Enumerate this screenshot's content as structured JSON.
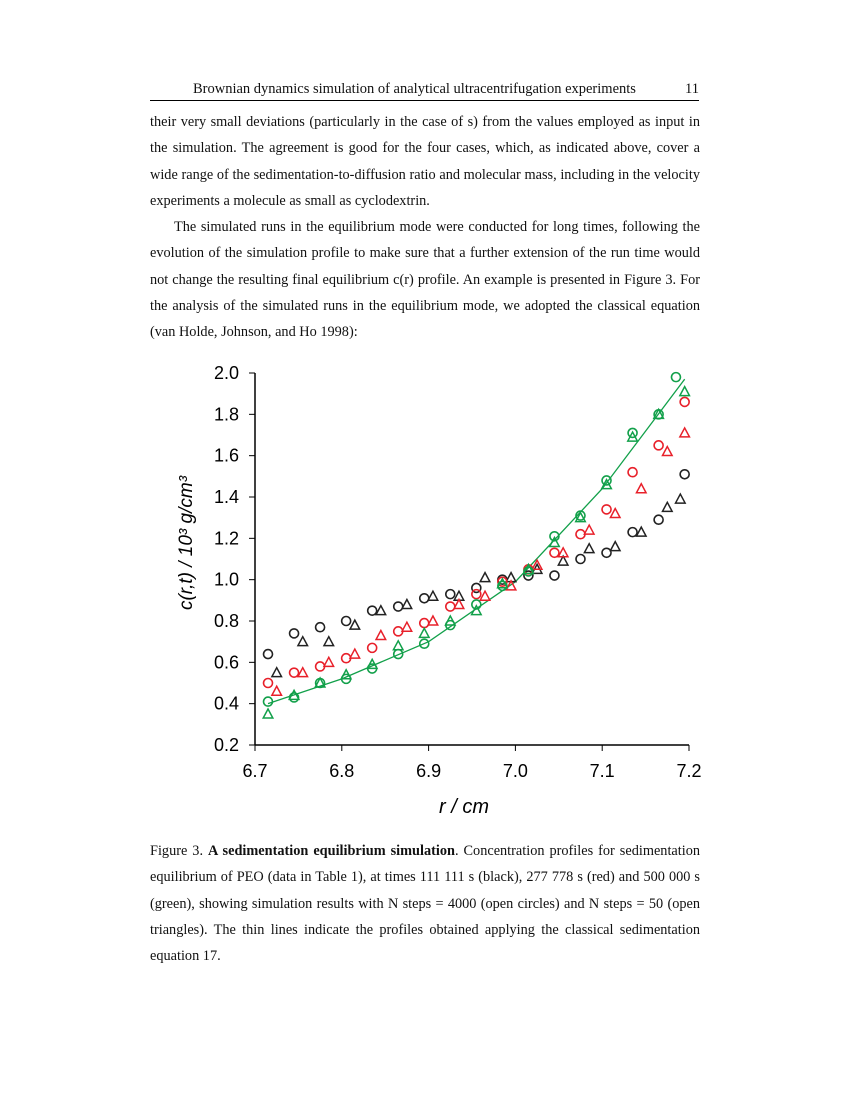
{
  "header": {
    "title": "Brownian dynamics simulation of analytical ultracentrifugation experiments",
    "page": "11"
  },
  "para1": "their very small deviations (particularly in the case of s) from the values employed as input in the simulation. The agreement is good for the four cases, which, as indicated above, cover a wide range of the sedimentation-to-diffusion ratio and molecular mass, including in the velocity experiments a molecule as small as cyclodextrin.",
  "para2": "The simulated runs in the equilibrium mode were conducted for long times, following the evolution of the simulation profile to make sure that a further extension of the run time would not change the resulting final equilibrium c(r) profile. An example is presented in Figure 3. For the analysis of the simulated runs in the equilibrium mode, we adopted the classical equation (van Holde, Johnson, and Ho 1998):",
  "caption": {
    "label": "Figure 3.",
    "title": "A sedimentation equilibrium simulation",
    "text": ". Concentration profiles for sedimentation equilibrium of PEO (data in Table 1), at times 111 111 s (black), 277 778 s (red) and 500 000 s (green), showing simulation results with N steps = 4000 (open circles) and N steps = 50 (open triangles). The thin lines indicate the profiles obtained applying the classical sedimentation equation 17."
  },
  "chart_data": {
    "type": "scatter",
    "xlabel": "r / cm",
    "ylabel": "c(r,t)  / 10^3 g/cm^3",
    "xlim": [
      6.7,
      7.2
    ],
    "ylim": [
      0.2,
      2.0
    ],
    "xticks": [
      "6.7",
      "6.8",
      "6.9",
      "7.0",
      "7.1",
      "7.2"
    ],
    "yticks": [
      "0.2",
      "0.4",
      "0.6",
      "0.8",
      "1.0",
      "1.2",
      "1.4",
      "1.6",
      "1.8",
      "2.0"
    ],
    "series": [
      {
        "name": "111111 s, Nsteps=4000",
        "color": "#222222",
        "marker": "circle",
        "x": [
          6.715,
          6.745,
          6.775,
          6.805,
          6.835,
          6.865,
          6.895,
          6.925,
          6.955,
          6.985,
          7.015,
          7.045,
          7.075,
          7.105,
          7.135,
          7.165,
          7.195
        ],
        "y": [
          0.64,
          0.74,
          0.77,
          0.8,
          0.85,
          0.87,
          0.91,
          0.93,
          0.96,
          1.0,
          1.02,
          1.02,
          1.1,
          1.13,
          1.23,
          1.29,
          1.51
        ]
      },
      {
        "name": "111111 s, Nsteps=50",
        "color": "#222222",
        "marker": "triangle",
        "x": [
          6.725,
          6.755,
          6.785,
          6.815,
          6.845,
          6.875,
          6.905,
          6.935,
          6.965,
          6.995,
          7.025,
          7.055,
          7.085,
          7.115,
          7.145,
          7.175,
          7.19
        ],
        "y": [
          0.55,
          0.7,
          0.7,
          0.78,
          0.85,
          0.88,
          0.92,
          0.92,
          1.01,
          1.01,
          1.05,
          1.09,
          1.15,
          1.16,
          1.23,
          1.35,
          1.39
        ]
      },
      {
        "name": "277778 s, Nsteps=4000",
        "color": "#e8202a",
        "marker": "circle",
        "x": [
          6.715,
          6.745,
          6.775,
          6.805,
          6.835,
          6.865,
          6.895,
          6.925,
          6.955,
          6.985,
          7.015,
          7.045,
          7.075,
          7.105,
          7.135,
          7.165,
          7.195
        ],
        "y": [
          0.5,
          0.55,
          0.58,
          0.62,
          0.67,
          0.75,
          0.79,
          0.87,
          0.93,
          0.99,
          1.05,
          1.13,
          1.22,
          1.34,
          1.52,
          1.65,
          1.86
        ]
      },
      {
        "name": "277778 s, Nsteps=50",
        "color": "#e8202a",
        "marker": "triangle",
        "x": [
          6.725,
          6.755,
          6.785,
          6.815,
          6.845,
          6.875,
          6.905,
          6.935,
          6.965,
          6.995,
          7.025,
          7.055,
          7.085,
          7.115,
          7.145,
          7.175,
          7.195
        ],
        "y": [
          0.46,
          0.55,
          0.6,
          0.64,
          0.73,
          0.77,
          0.8,
          0.88,
          0.92,
          0.97,
          1.07,
          1.13,
          1.24,
          1.32,
          1.44,
          1.62,
          1.71
        ]
      },
      {
        "name": "500000 s, Nsteps=4000",
        "color": "#12a04a",
        "marker": "circle",
        "x": [
          6.715,
          6.745,
          6.775,
          6.805,
          6.835,
          6.865,
          6.895,
          6.925,
          6.955,
          6.985,
          7.015,
          7.045,
          7.075,
          7.105,
          7.135,
          7.165,
          7.185
        ],
        "y": [
          0.41,
          0.43,
          0.5,
          0.52,
          0.57,
          0.64,
          0.69,
          0.78,
          0.88,
          0.97,
          1.04,
          1.21,
          1.31,
          1.48,
          1.71,
          1.8,
          1.98
        ]
      },
      {
        "name": "500000 s, Nsteps=50",
        "color": "#12a04a",
        "marker": "triangle",
        "x": [
          6.715,
          6.745,
          6.775,
          6.805,
          6.835,
          6.865,
          6.895,
          6.925,
          6.955,
          6.985,
          7.015,
          7.045,
          7.075,
          7.105,
          7.135,
          7.165,
          7.195
        ],
        "y": [
          0.35,
          0.44,
          0.5,
          0.54,
          0.59,
          0.68,
          0.74,
          0.8,
          0.85,
          0.98,
          1.05,
          1.18,
          1.3,
          1.46,
          1.69,
          1.8,
          1.91
        ]
      }
    ],
    "lines": [
      {
        "name": "classical equation 500000 s",
        "color": "#12a04a",
        "x": [
          6.715,
          6.8,
          6.9,
          7.0,
          7.1,
          7.195
        ],
        "y": [
          0.4,
          0.52,
          0.7,
          0.99,
          1.44,
          1.97
        ]
      }
    ]
  }
}
